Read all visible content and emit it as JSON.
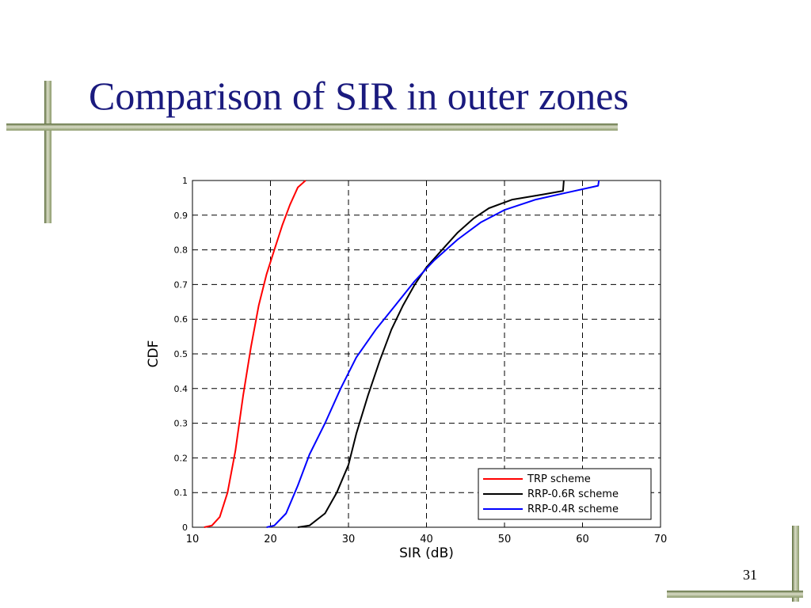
{
  "slide": {
    "title": "Comparison of SIR in outer zones",
    "page_number": "31",
    "accent_color": "#1a1a7e"
  },
  "chart_data": {
    "type": "line",
    "title": "",
    "xlabel": "SIR (dB)",
    "ylabel": "CDF",
    "xlim": [
      10,
      70
    ],
    "ylim": [
      0,
      1
    ],
    "xticks": [
      10,
      20,
      30,
      40,
      50,
      60,
      70
    ],
    "yticks": [
      0,
      0.1,
      0.2,
      0.3,
      0.4,
      0.5,
      0.6,
      0.7,
      0.8,
      0.9,
      1
    ],
    "grid": true,
    "legend_position": "bottom-right",
    "series": [
      {
        "name": "TRP scheme",
        "color": "#ff0000",
        "points": [
          [
            11.5,
            0
          ],
          [
            12.5,
            0.005
          ],
          [
            13.5,
            0.03
          ],
          [
            14.5,
            0.1
          ],
          [
            15.5,
            0.22
          ],
          [
            16.5,
            0.38
          ],
          [
            17.5,
            0.52
          ],
          [
            18.5,
            0.64
          ],
          [
            19.5,
            0.73
          ],
          [
            20.5,
            0.8
          ],
          [
            21.5,
            0.87
          ],
          [
            22.5,
            0.93
          ],
          [
            23.5,
            0.98
          ],
          [
            24.5,
            1
          ]
        ]
      },
      {
        "name": "RRP-0.6R scheme",
        "color": "#000000",
        "points": [
          [
            23.5,
            0
          ],
          [
            25,
            0.005
          ],
          [
            27,
            0.04
          ],
          [
            28.5,
            0.1
          ],
          [
            30,
            0.18
          ],
          [
            31,
            0.27
          ],
          [
            32.5,
            0.38
          ],
          [
            34,
            0.48
          ],
          [
            35.5,
            0.57
          ],
          [
            37,
            0.64
          ],
          [
            38.5,
            0.7
          ],
          [
            40,
            0.75
          ],
          [
            42,
            0.8
          ],
          [
            44,
            0.85
          ],
          [
            46,
            0.89
          ],
          [
            48,
            0.92
          ],
          [
            51,
            0.945
          ],
          [
            55,
            0.96
          ],
          [
            57.5,
            0.97
          ],
          [
            57.6,
            1
          ]
        ]
      },
      {
        "name": "RRP-0.4R scheme",
        "color": "#0000ff",
        "points": [
          [
            19.5,
            0
          ],
          [
            20.5,
            0.005
          ],
          [
            22,
            0.04
          ],
          [
            23.5,
            0.12
          ],
          [
            25,
            0.21
          ],
          [
            27,
            0.3
          ],
          [
            29,
            0.4
          ],
          [
            31,
            0.49
          ],
          [
            33.5,
            0.57
          ],
          [
            36,
            0.64
          ],
          [
            38.5,
            0.71
          ],
          [
            41,
            0.77
          ],
          [
            44,
            0.83
          ],
          [
            47,
            0.88
          ],
          [
            50,
            0.915
          ],
          [
            54,
            0.945
          ],
          [
            58,
            0.965
          ],
          [
            62,
            0.985
          ],
          [
            62.1,
            1
          ]
        ]
      }
    ]
  }
}
